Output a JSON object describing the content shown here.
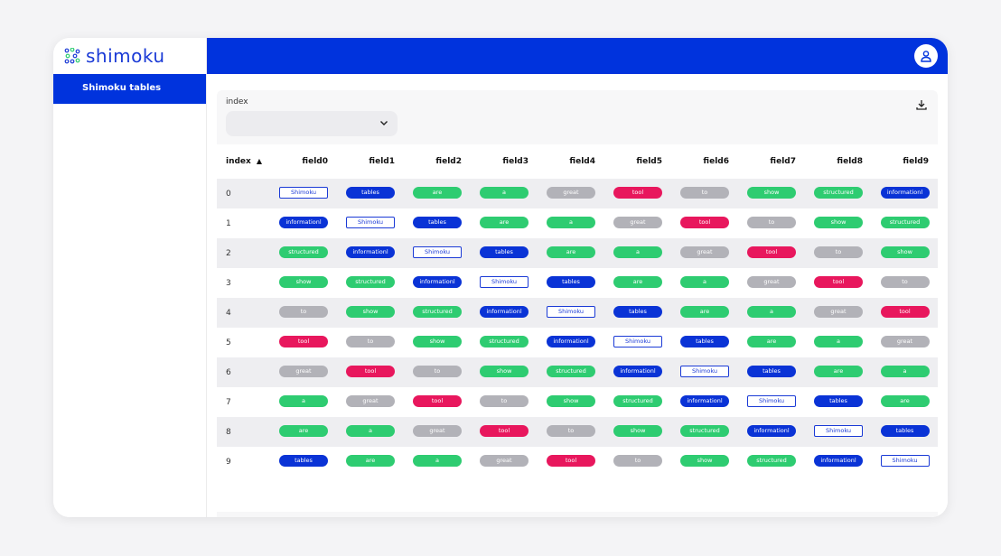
{
  "app": {
    "logo_text": "shimoku"
  },
  "sidebar": {
    "items": [
      {
        "label": "Shimoku tables"
      }
    ]
  },
  "filter": {
    "label": "index",
    "selected": ""
  },
  "colors": {
    "blue": "#0a33d6",
    "green": "#2ecc71",
    "gray": "#b2b2b8",
    "red": "#e8175d",
    "outline": "#1a3ad6",
    "header": "#0033dd"
  },
  "table": {
    "sort_indicator": "▲",
    "columns": [
      "index",
      "field0",
      "field1",
      "field2",
      "field3",
      "field4",
      "field5",
      "field6",
      "field7",
      "field8",
      "field9"
    ],
    "rows": [
      {
        "index": "0",
        "cells": [
          "Shimoku",
          "tables",
          "are",
          "a",
          "great",
          "tool",
          "to",
          "show",
          "structured",
          "informationl"
        ]
      },
      {
        "index": "1",
        "cells": [
          "informationl",
          "Shimoku",
          "tables",
          "are",
          "a",
          "great",
          "tool",
          "to",
          "show",
          "structured"
        ]
      },
      {
        "index": "2",
        "cells": [
          "structured",
          "informationl",
          "Shimoku",
          "tables",
          "are",
          "a",
          "great",
          "tool",
          "to",
          "show"
        ]
      },
      {
        "index": "3",
        "cells": [
          "show",
          "structured",
          "informationl",
          "Shimoku",
          "tables",
          "are",
          "a",
          "great",
          "tool",
          "to"
        ]
      },
      {
        "index": "4",
        "cells": [
          "to",
          "show",
          "structured",
          "informationl",
          "Shimoku",
          "tables",
          "are",
          "a",
          "great",
          "tool"
        ]
      },
      {
        "index": "5",
        "cells": [
          "tool",
          "to",
          "show",
          "structured",
          "informationl",
          "Shimoku",
          "tables",
          "are",
          "a",
          "great"
        ]
      },
      {
        "index": "6",
        "cells": [
          "great",
          "tool",
          "to",
          "show",
          "structured",
          "informationl",
          "Shimoku",
          "tables",
          "are",
          "a"
        ]
      },
      {
        "index": "7",
        "cells": [
          "a",
          "great",
          "tool",
          "to",
          "show",
          "structured",
          "informationl",
          "Shimoku",
          "tables",
          "are"
        ]
      },
      {
        "index": "8",
        "cells": [
          "are",
          "a",
          "great",
          "tool",
          "to",
          "show",
          "structured",
          "informationl",
          "Shimoku",
          "tables"
        ]
      },
      {
        "index": "9",
        "cells": [
          "tables",
          "are",
          "a",
          "great",
          "tool",
          "to",
          "show",
          "structured",
          "informationl",
          "Shimoku"
        ]
      }
    ]
  },
  "pager": {
    "prev": "‹",
    "next": "›"
  }
}
